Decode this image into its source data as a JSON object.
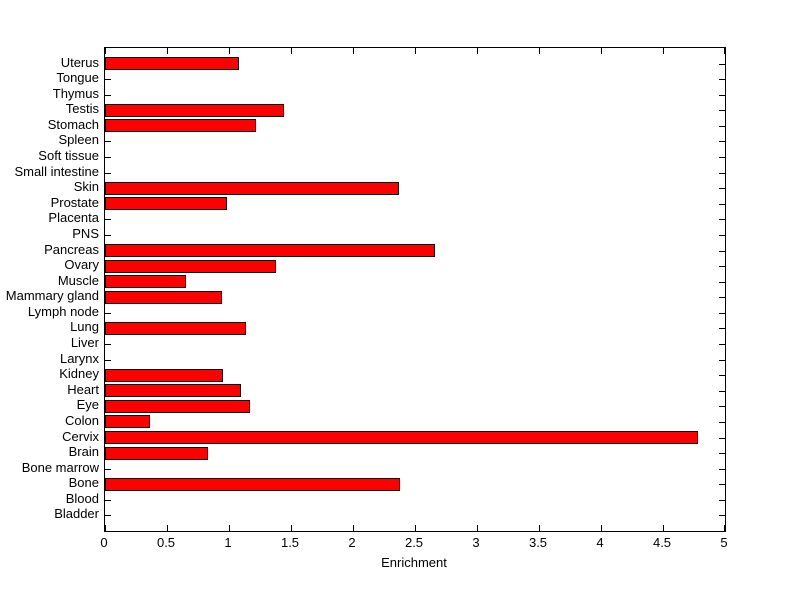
{
  "figure": {
    "background_color": "#ffffff",
    "axis_color": "#000000"
  },
  "chart_data": {
    "type": "bar",
    "orientation": "horizontal",
    "title": "",
    "xlabel": "Enrichment",
    "ylabel": "",
    "xlim": [
      0,
      5
    ],
    "grid": false,
    "legend": null,
    "bar_fill_color": "#ff0000",
    "bar_edge_color": "#000000",
    "xticks": [
      0,
      0.5,
      1,
      1.5,
      2,
      2.5,
      3,
      3.5,
      4,
      4.5,
      5
    ],
    "xtick_labels": [
      "0",
      "0.5",
      "1",
      "1.5",
      "2",
      "2.5",
      "3",
      "3.5",
      "4",
      "4.5",
      "5"
    ],
    "categories": [
      "Uterus",
      "Tongue",
      "Thymus",
      "Testis",
      "Stomach",
      "Spleen",
      "Soft tissue",
      "Small intestine",
      "Skin",
      "Prostate",
      "Placenta",
      "PNS",
      "Pancreas",
      "Ovary",
      "Muscle",
      "Mammary gland",
      "Lymph node",
      "Lung",
      "Liver",
      "Larynx",
      "Kidney",
      "Heart",
      "Eye",
      "Colon",
      "Cervix",
      "Brain",
      "Bone marrow",
      "Bone",
      "Blood",
      "Bladder"
    ],
    "values": [
      1.08,
      0,
      0,
      1.44,
      1.22,
      0,
      0,
      0,
      2.37,
      0.98,
      0,
      0,
      2.66,
      1.38,
      0.65,
      0.94,
      0,
      1.14,
      0,
      0,
      0.95,
      1.1,
      1.17,
      0.36,
      4.78,
      0.83,
      0,
      2.38,
      0,
      0
    ]
  }
}
